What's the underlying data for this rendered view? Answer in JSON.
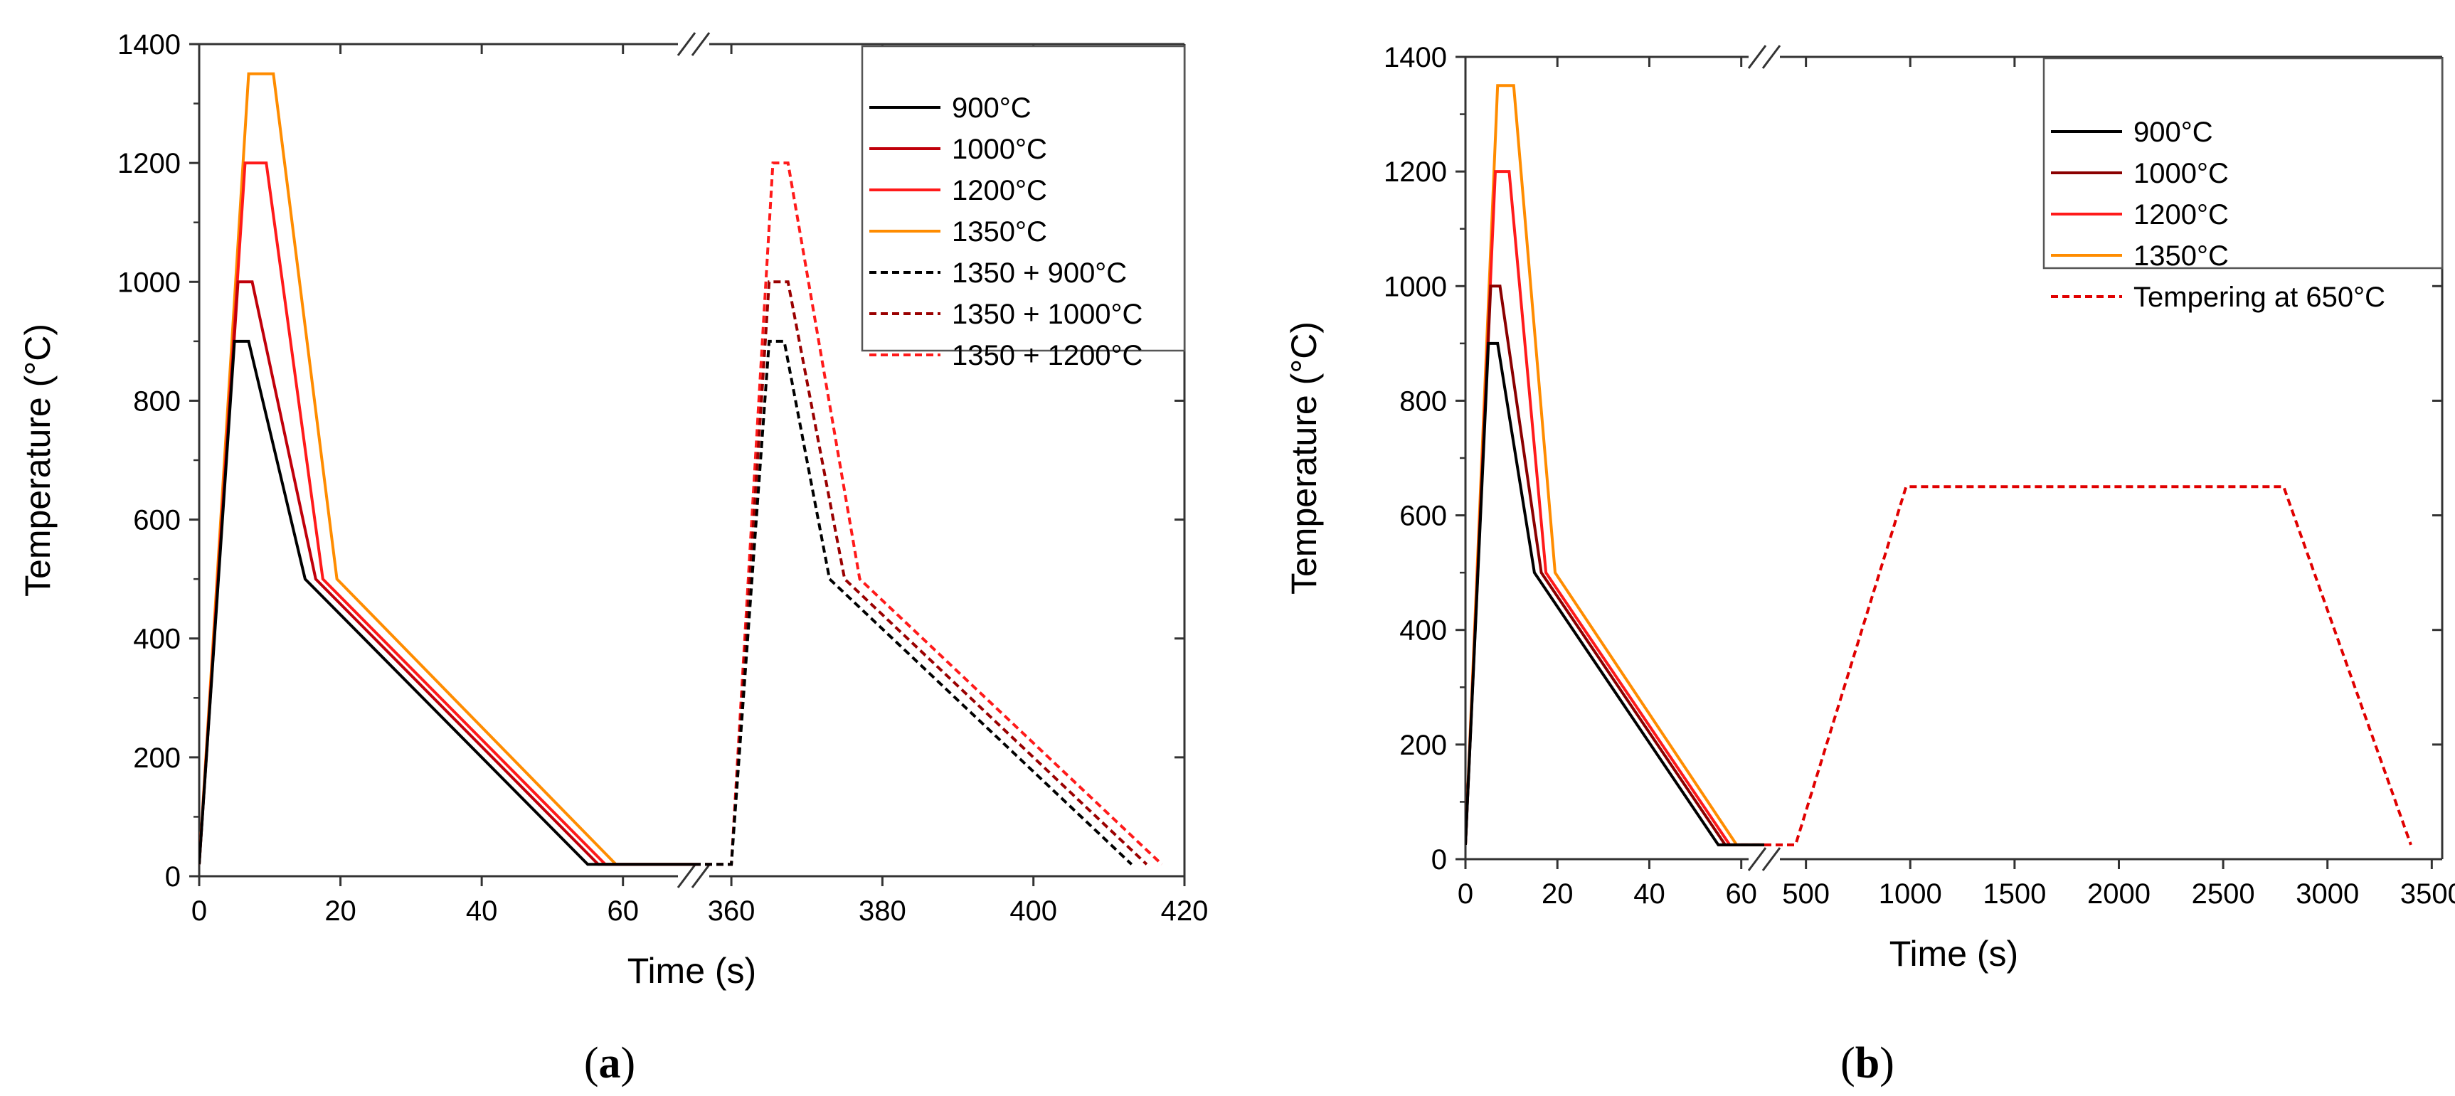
{
  "colors": {
    "900": "#000000",
    "1000": "#c0000a",
    "1200": "#ff1a1a",
    "1350": "#ff8c00",
    "c1350_900": "#000000",
    "c1350_1000": "#9a0000",
    "c1350_1200": "#ff1a1a",
    "tempering": "#e00000",
    "b1000": "#8b0000"
  },
  "chart_data": [
    {
      "type": "line",
      "panel_label": "a",
      "xlabel": "Time (s)",
      "ylabel": "Temperature (°C)",
      "ylim": [
        0,
        1400
      ],
      "y_ticks": [
        0,
        200,
        400,
        600,
        800,
        1000,
        1200,
        1400
      ],
      "x_axis_break": true,
      "x_segments": [
        {
          "xlim": [
            0,
            70
          ],
          "ticks": [
            0,
            20,
            40,
            60
          ]
        },
        {
          "xlim": [
            355,
            420
          ],
          "ticks": [
            360,
            380,
            400,
            420
          ]
        }
      ],
      "legend_position": "top-right",
      "series": [
        {
          "name": "900°C",
          "style": "solid",
          "color_key": "900",
          "x": [
            0,
            5,
            7,
            15,
            55,
            70
          ],
          "y": [
            20,
            900,
            900,
            500,
            20,
            20
          ]
        },
        {
          "name": "1000°C",
          "style": "solid",
          "color_key": "1000",
          "x": [
            0,
            5.5,
            7.5,
            16.5,
            56.5,
            70
          ],
          "y": [
            20,
            1000,
            1000,
            500,
            20,
            20
          ]
        },
        {
          "name": "1200°C",
          "style": "solid",
          "color_key": "1200",
          "x": [
            0,
            6.5,
            9.5,
            17.5,
            57.5,
            70
          ],
          "y": [
            20,
            1200,
            1200,
            500,
            20,
            20
          ]
        },
        {
          "name": "1350°C",
          "style": "solid",
          "color_key": "1350",
          "x": [
            0,
            7,
            10.5,
            19.5,
            59,
            70
          ],
          "y": [
            20,
            1350,
            1350,
            500,
            20,
            20
          ]
        },
        {
          "name": "1350 + 900°C",
          "style": "dashed",
          "color_key": "c1350_900",
          "x": [
            355,
            360,
            365,
            367,
            373,
            413
          ],
          "y": [
            20,
            20,
            900,
            900,
            500,
            20
          ]
        },
        {
          "name": "1350 + 1000°C",
          "style": "dashed",
          "color_key": "c1350_1000",
          "x": [
            355,
            360,
            365,
            367.5,
            375,
            415
          ],
          "y": [
            20,
            20,
            1000,
            1000,
            500,
            20
          ]
        },
        {
          "name": "1350 + 1200°C",
          "style": "dashed",
          "color_key": "c1350_1200",
          "x": [
            355,
            360,
            365.5,
            367.5,
            377,
            417
          ],
          "y": [
            20,
            20,
            1200,
            1200,
            500,
            20
          ]
        }
      ]
    },
    {
      "type": "line",
      "panel_label": "b",
      "xlabel": "Time (s)",
      "ylabel": "Temperature (°C)",
      "ylim": [
        0,
        1400
      ],
      "y_ticks": [
        0,
        200,
        400,
        600,
        800,
        1000,
        1200,
        1400
      ],
      "x_axis_break": true,
      "x_segments": [
        {
          "xlim": [
            0,
            65
          ],
          "ticks": [
            0,
            20,
            40,
            60
          ]
        },
        {
          "xlim": [
            300,
            3550
          ],
          "ticks": [
            500,
            1000,
            1500,
            2000,
            2500,
            3000,
            3500
          ]
        }
      ],
      "legend_position": "top-right",
      "series": [
        {
          "name": "900°C",
          "style": "solid",
          "color_key": "900",
          "x": [
            0,
            5,
            7,
            15,
            55,
            65
          ],
          "y": [
            25,
            900,
            900,
            500,
            25,
            25
          ]
        },
        {
          "name": "1000°C",
          "style": "solid",
          "color_key": "b1000",
          "x": [
            0,
            5.5,
            7.5,
            16.5,
            56.5,
            65
          ],
          "y": [
            25,
            1000,
            1000,
            500,
            25,
            25
          ]
        },
        {
          "name": "1200°C",
          "style": "solid",
          "color_key": "1200",
          "x": [
            0,
            6.5,
            9.5,
            17.5,
            57.5,
            65
          ],
          "y": [
            25,
            1200,
            1200,
            500,
            25,
            25
          ]
        },
        {
          "name": "1350°C",
          "style": "solid",
          "color_key": "1350",
          "x": [
            0,
            7,
            10.5,
            19.5,
            59,
            65
          ],
          "y": [
            25,
            1350,
            1350,
            500,
            25,
            25
          ]
        },
        {
          "name": "Tempering at 650°C",
          "style": "dashed",
          "color_key": "tempering",
          "segments": [
            {
              "seg": 0,
              "x": [
                55,
                65
              ],
              "y": [
                25,
                25
              ]
            },
            {
              "seg": 1,
              "x": [
                300,
                450,
                980,
                2790,
                3400
              ],
              "y": [
                25,
                25,
                650,
                650,
                25
              ]
            }
          ]
        }
      ]
    }
  ]
}
